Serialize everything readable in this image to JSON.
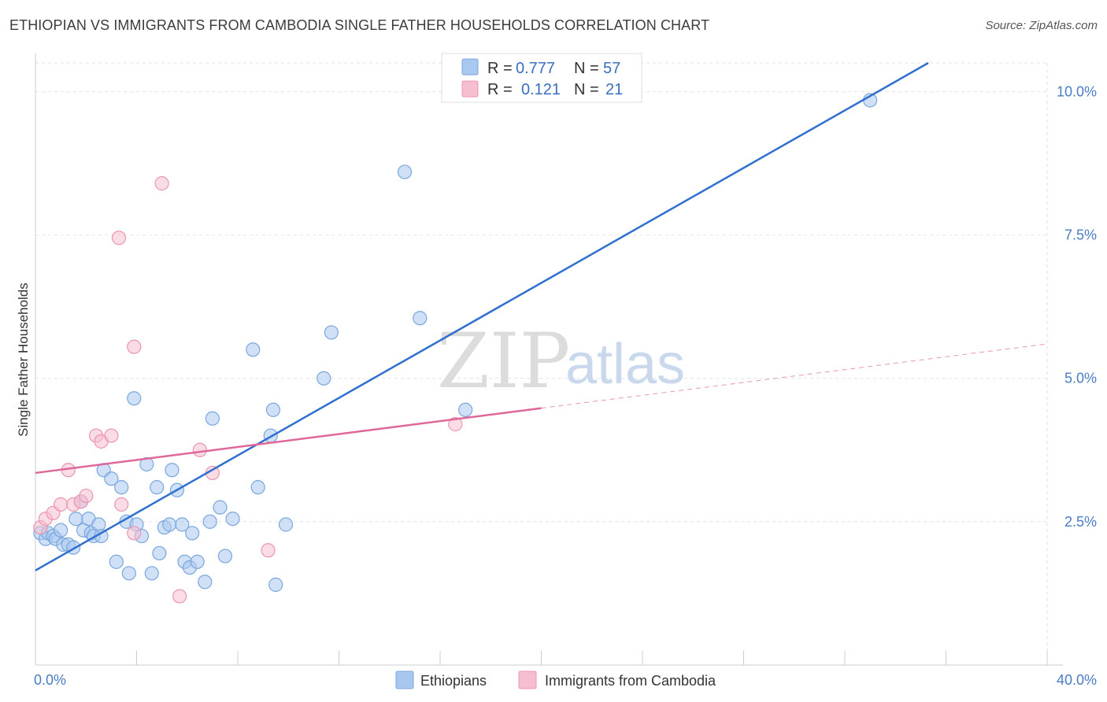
{
  "title": "ETHIOPIAN VS IMMIGRANTS FROM CAMBODIA SINGLE FATHER HOUSEHOLDS CORRELATION CHART",
  "source": "Source: ZipAtlas.com",
  "watermark": {
    "zip": "ZIP",
    "atlas": "atlas"
  },
  "colors": {
    "ethiopians_fill": "#a9c8f0",
    "ethiopians_stroke": "#7aa6dd",
    "ethiopians_line": "#2f6fcf",
    "cambodia_fill": "#f6bfd0",
    "cambodia_stroke": "#ec94b1",
    "cambodia_line": "#e0679a"
  },
  "legend": {
    "r_label": "R =",
    "n_label": "N =",
    "ethiopians": {
      "r": "0.777",
      "n": "57"
    },
    "cambodia": {
      "r": "0.121",
      "n": "21"
    }
  },
  "chart_data": {
    "type": "scatter",
    "title": "ETHIOPIAN VS IMMIGRANTS FROM CAMBODIA SINGLE FATHER HOUSEHOLDS CORRELATION CHART",
    "xlabel": "",
    "ylabel": "Single Father Households",
    "xlim": [
      0,
      40
    ],
    "ylim": [
      0,
      10.5
    ],
    "x_tick_labels": [
      "0.0%",
      "40.0%"
    ],
    "y_ticks": [
      2.5,
      5.0,
      7.5,
      10.0
    ],
    "y_tick_labels": [
      "2.5%",
      "5.0%",
      "7.5%",
      "10.0%"
    ],
    "grid": true,
    "legend_position": "top-center",
    "series": [
      {
        "name": "Ethiopians",
        "r": 0.777,
        "n": 57,
        "trend": {
          "x": [
            0,
            35.3
          ],
          "y": [
            1.65,
            10.5
          ]
        },
        "points": [
          [
            0.2,
            2.3
          ],
          [
            0.4,
            2.2
          ],
          [
            0.5,
            2.3
          ],
          [
            0.7,
            2.25
          ],
          [
            0.8,
            2.2
          ],
          [
            1.0,
            2.35
          ],
          [
            1.1,
            2.1
          ],
          [
            1.3,
            2.1
          ],
          [
            1.5,
            2.05
          ],
          [
            1.6,
            2.55
          ],
          [
            1.8,
            2.85
          ],
          [
            1.9,
            2.35
          ],
          [
            2.1,
            2.55
          ],
          [
            2.2,
            2.3
          ],
          [
            2.3,
            2.25
          ],
          [
            2.5,
            2.45
          ],
          [
            2.6,
            2.25
          ],
          [
            2.7,
            3.4
          ],
          [
            3.0,
            3.25
          ],
          [
            3.2,
            1.8
          ],
          [
            3.4,
            3.1
          ],
          [
            3.6,
            2.5
          ],
          [
            3.7,
            1.6
          ],
          [
            3.9,
            4.65
          ],
          [
            4.0,
            2.45
          ],
          [
            4.2,
            2.25
          ],
          [
            4.4,
            3.5
          ],
          [
            4.6,
            1.6
          ],
          [
            4.8,
            3.1
          ],
          [
            4.9,
            1.95
          ],
          [
            5.1,
            2.4
          ],
          [
            5.3,
            2.45
          ],
          [
            5.4,
            3.4
          ],
          [
            5.6,
            3.05
          ],
          [
            5.8,
            2.45
          ],
          [
            5.9,
            1.8
          ],
          [
            6.1,
            1.7
          ],
          [
            6.2,
            2.3
          ],
          [
            6.4,
            1.8
          ],
          [
            6.7,
            1.45
          ],
          [
            6.9,
            2.5
          ],
          [
            7.0,
            4.3
          ],
          [
            7.3,
            2.75
          ],
          [
            7.5,
            1.9
          ],
          [
            7.8,
            2.55
          ],
          [
            8.6,
            5.5
          ],
          [
            8.8,
            3.1
          ],
          [
            9.3,
            4.0
          ],
          [
            9.4,
            4.45
          ],
          [
            9.5,
            1.4
          ],
          [
            9.9,
            2.45
          ],
          [
            11.4,
            5.0
          ],
          [
            11.7,
            5.8
          ],
          [
            14.6,
            8.6
          ],
          [
            15.2,
            6.05
          ],
          [
            17.0,
            4.45
          ],
          [
            33.0,
            9.85
          ]
        ]
      },
      {
        "name": "Immigrants from Cambodia",
        "r": 0.121,
        "n": 21,
        "trend": {
          "x": [
            0,
            20
          ],
          "y": [
            3.35,
            4.48
          ]
        },
        "trend_dashed": {
          "x": [
            20,
            40
          ],
          "y": [
            4.48,
            5.6
          ]
        },
        "points": [
          [
            0.2,
            2.4
          ],
          [
            0.4,
            2.55
          ],
          [
            0.7,
            2.65
          ],
          [
            1.0,
            2.8
          ],
          [
            1.3,
            3.4
          ],
          [
            1.5,
            2.8
          ],
          [
            1.8,
            2.85
          ],
          [
            2.0,
            2.95
          ],
          [
            2.4,
            4.0
          ],
          [
            2.6,
            3.9
          ],
          [
            3.0,
            4.0
          ],
          [
            3.4,
            2.8
          ],
          [
            3.9,
            2.3
          ],
          [
            3.9,
            5.55
          ],
          [
            3.3,
            7.45
          ],
          [
            5.0,
            8.4
          ],
          [
            5.7,
            1.2
          ],
          [
            6.5,
            3.75
          ],
          [
            7.0,
            3.35
          ],
          [
            9.2,
            2.0
          ],
          [
            16.6,
            4.2
          ]
        ]
      }
    ]
  },
  "bottom_legend": [
    {
      "label": "Ethiopians"
    },
    {
      "label": "Immigrants from Cambodia"
    }
  ]
}
